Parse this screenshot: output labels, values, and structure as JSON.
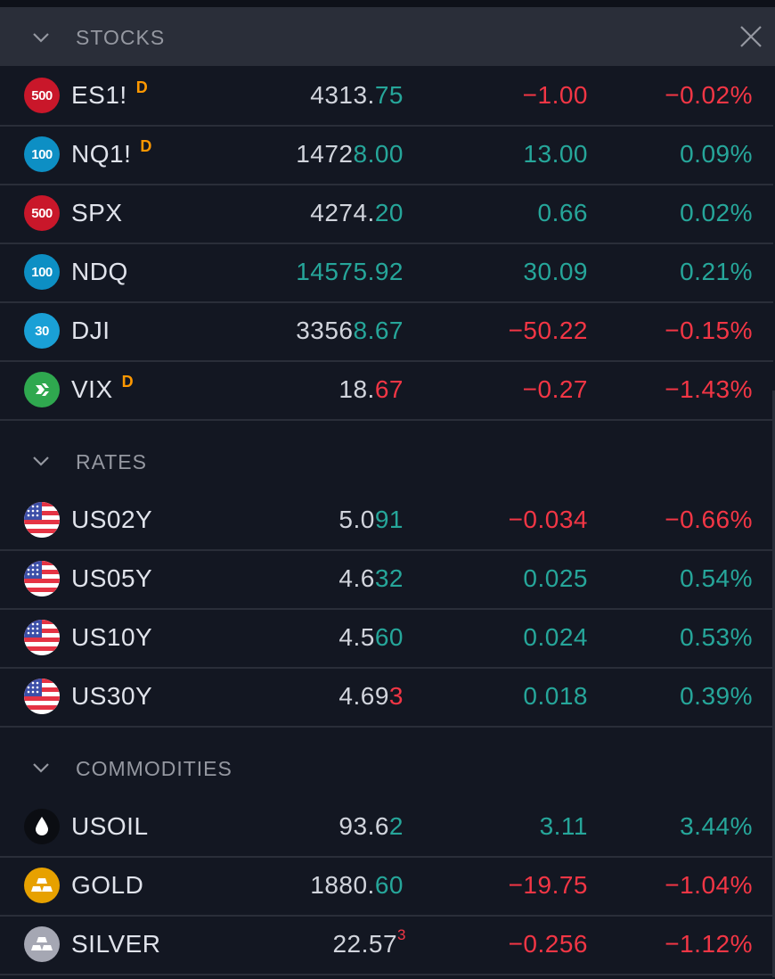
{
  "sections": {
    "stocks": {
      "title": "STOCKS",
      "rows": [
        {
          "badge": "500",
          "symbol": "ES1!",
          "delayed": "D",
          "last_main": "4313.",
          "last_hl": "75",
          "last_sup": "",
          "change": "−1.00",
          "change_pct": "−0.02%"
        },
        {
          "badge": "100",
          "symbol": "NQ1!",
          "delayed": "D",
          "last_main": "1472",
          "last_hl": "8.00",
          "last_sup": "",
          "change": "13.00",
          "change_pct": "0.09%"
        },
        {
          "badge": "500",
          "symbol": "SPX",
          "delayed": "",
          "last_main": "4274.",
          "last_hl": "20",
          "last_sup": "",
          "change": "0.66",
          "change_pct": "0.02%"
        },
        {
          "badge": "100",
          "symbol": "NDQ",
          "delayed": "",
          "last_main": "",
          "last_hl": "14575.92",
          "last_sup": "",
          "change": "30.09",
          "change_pct": "0.21%"
        },
        {
          "badge": "30",
          "symbol": "DJI",
          "delayed": "",
          "last_main": "3356",
          "last_hl": "8.67",
          "last_sup": "",
          "change": "−50.22",
          "change_pct": "−0.15%"
        },
        {
          "badge": "",
          "symbol": "VIX",
          "delayed": "D",
          "last_main": "18.",
          "last_hl": "67",
          "last_sup": "",
          "change": "−0.27",
          "change_pct": "−1.43%"
        }
      ]
    },
    "rates": {
      "title": "RATES",
      "rows": [
        {
          "symbol": "US02Y",
          "last_main": "5.0",
          "last_hl": "91",
          "last_sup": "",
          "change": "−0.034",
          "change_pct": "−0.66%"
        },
        {
          "symbol": "US05Y",
          "last_main": "4.6",
          "last_hl": "32",
          "last_sup": "",
          "change": "0.025",
          "change_pct": "0.54%"
        },
        {
          "symbol": "US10Y",
          "last_main": "4.5",
          "last_hl": "60",
          "last_sup": "",
          "change": "0.024",
          "change_pct": "0.53%"
        },
        {
          "symbol": "US30Y",
          "last_main": "4.69",
          "last_hl": "3",
          "last_sup": "",
          "change": "0.018",
          "change_pct": "0.39%"
        }
      ]
    },
    "commodities": {
      "title": "COMMODITIES",
      "rows": [
        {
          "symbol": "USOIL",
          "last_main": "93.6",
          "last_hl": "2",
          "last_sup": "",
          "change": "3.11",
          "change_pct": "3.44%"
        },
        {
          "symbol": "GOLD",
          "last_main": "1880.",
          "last_hl": "60",
          "last_sup": "",
          "change": "−19.75",
          "change_pct": "−1.04%"
        },
        {
          "symbol": "SILVER",
          "last_main": "22.57",
          "last_hl": "",
          "last_sup": "3",
          "change": "−0.256",
          "change_pct": "−1.12%"
        }
      ]
    }
  },
  "colors": {
    "background": "#131722",
    "header_bg": "#2a2e39",
    "up": "#26a69a",
    "down": "#f23645",
    "delayed": "#ff9800",
    "badge_500": "#c9172a",
    "badge_100": "#0d8fc4",
    "badge_30": "#1aa0d6",
    "vix": "#2fa84f",
    "gold": "#e7a100",
    "silver": "#a5a7b3"
  }
}
